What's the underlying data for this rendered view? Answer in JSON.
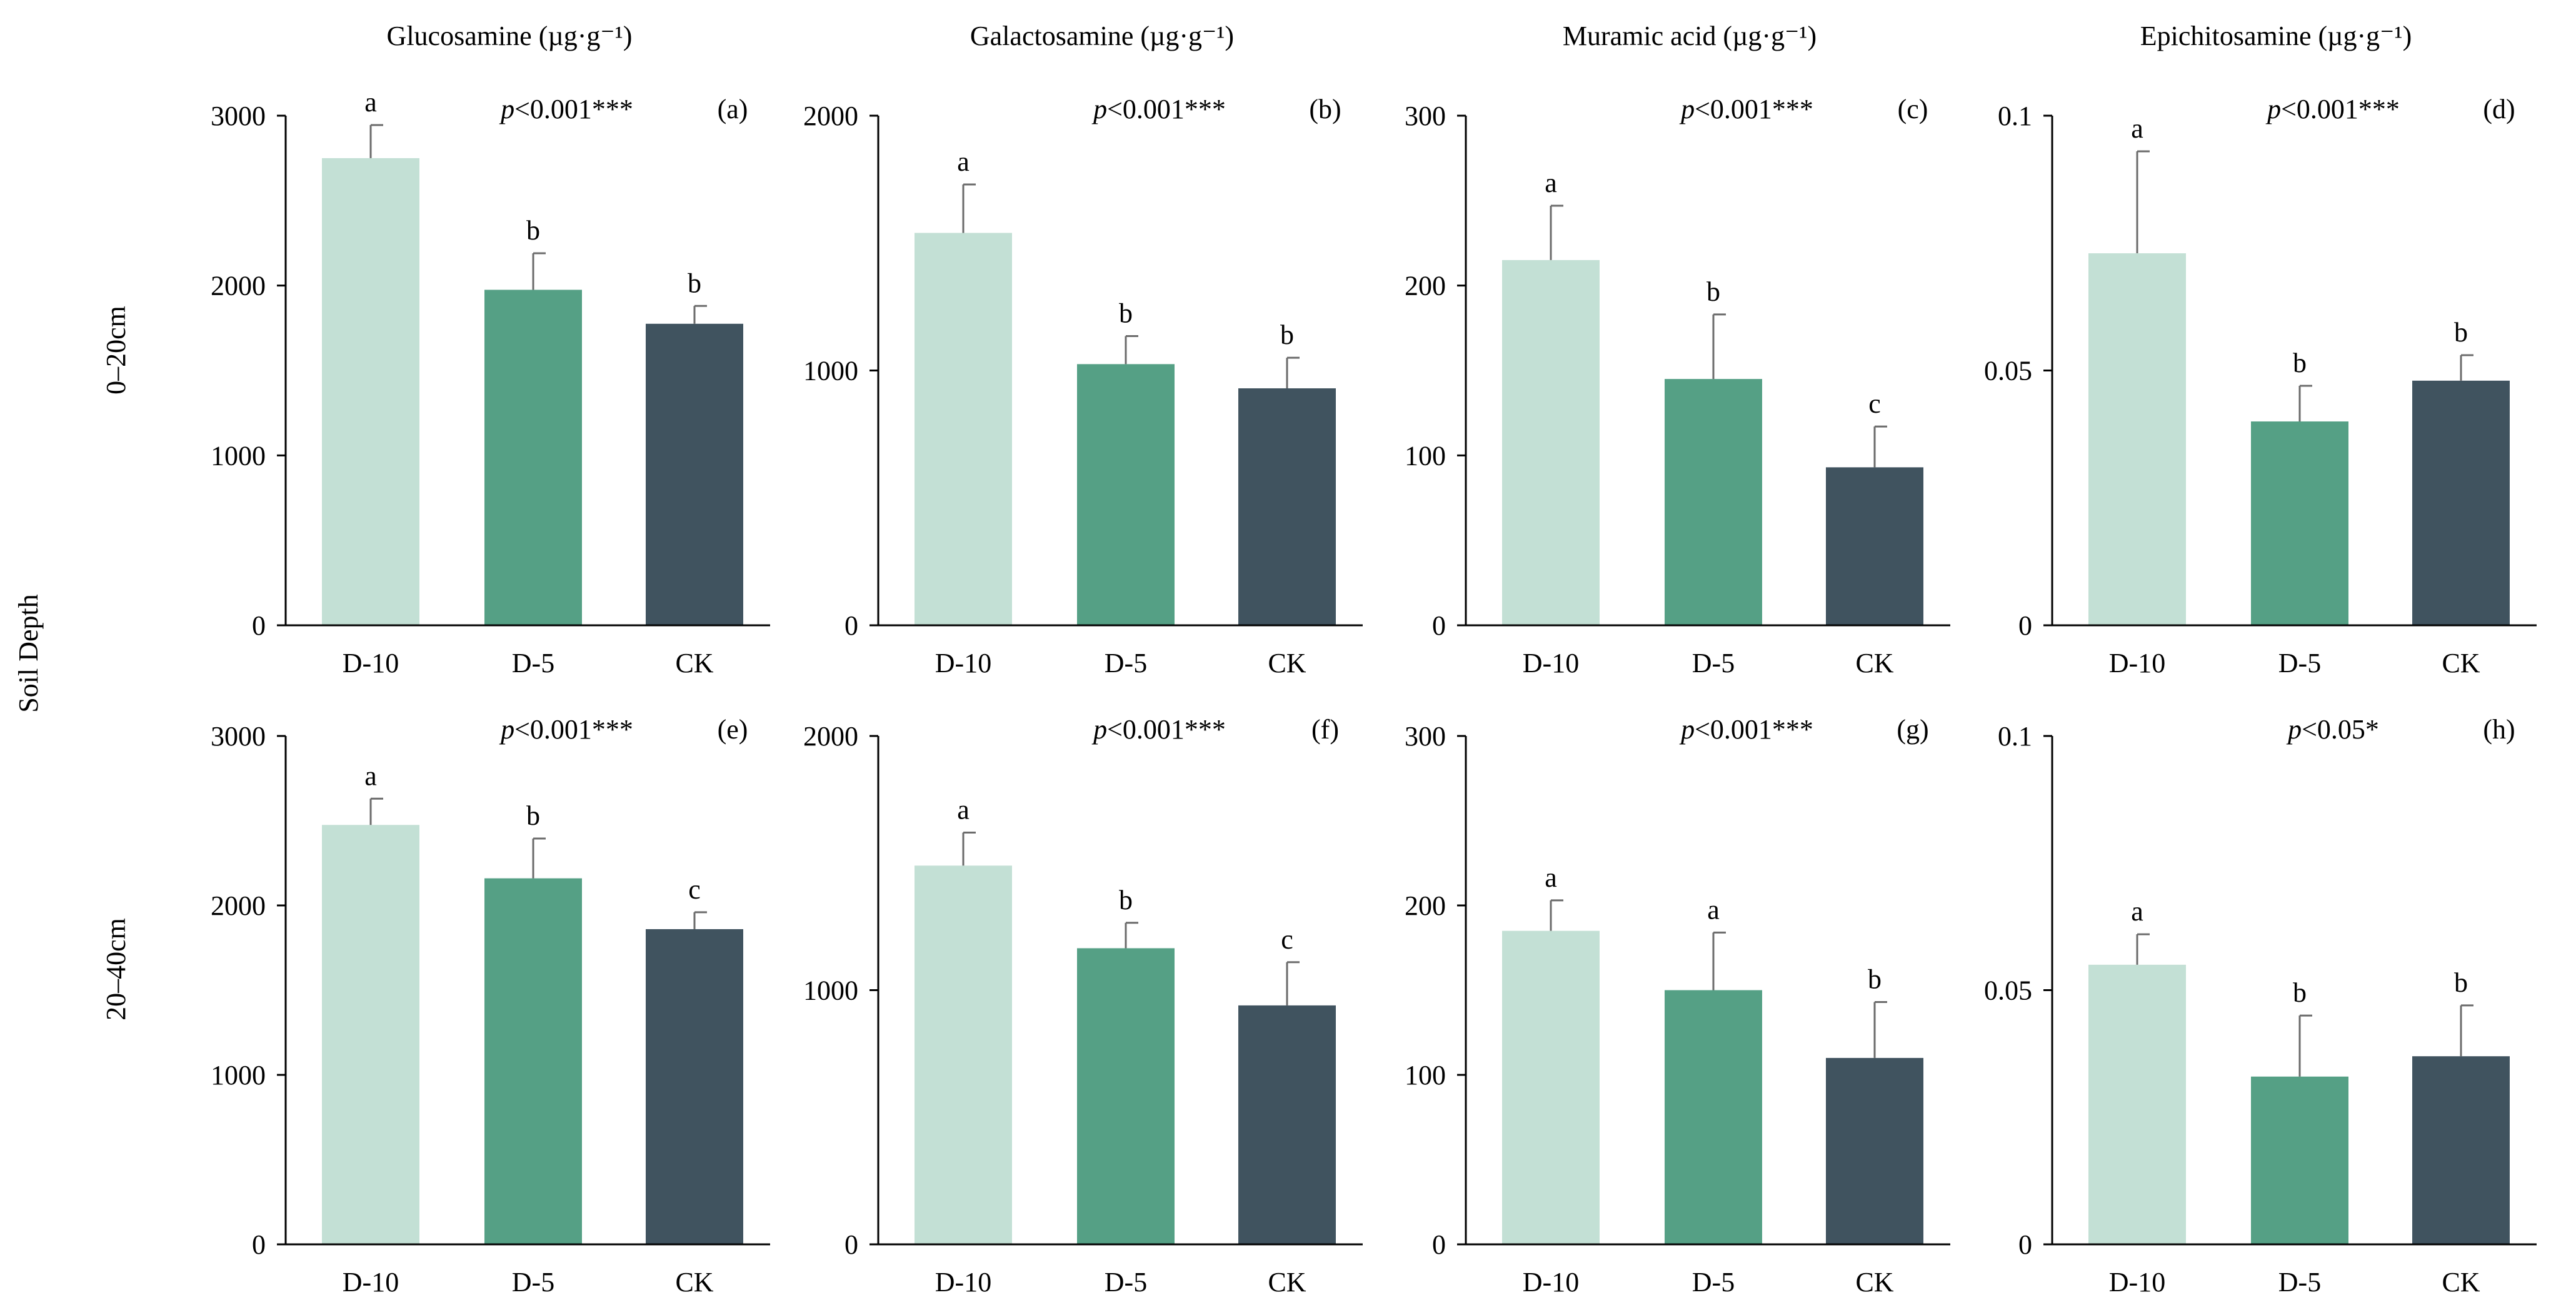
{
  "figure": {
    "row_axis_title": "Soil Depth",
    "row_labels": [
      "0–20cm",
      "20–40cm"
    ],
    "colors": {
      "D-10": "#c3e0d5",
      "D-5": "#55a085",
      "CK": "#40535f",
      "axis": "#000000",
      "error_bar": "#6b6b6b"
    }
  },
  "chart_data": [
    {
      "panel": "(a)",
      "type": "bar",
      "title": "Glucosamine (µg·g⁻¹)",
      "depth": "0–20cm",
      "categories": [
        "D-10",
        "D-5",
        "CK"
      ],
      "values": [
        2750,
        1975,
        1775
      ],
      "errors": [
        195,
        215,
        105
      ],
      "letters": [
        "a",
        "b",
        "b"
      ],
      "pvalue": {
        "italic": "p",
        "text": "<0.001***"
      },
      "ylim": [
        0,
        3000
      ],
      "yticks": [
        0,
        1000,
        2000,
        3000
      ],
      "ytick_labels": [
        "0",
        "1000",
        "2000",
        "3000"
      ]
    },
    {
      "panel": "(b)",
      "type": "bar",
      "title": "Galactosamine (µg·g⁻¹)",
      "depth": "0–20cm",
      "categories": [
        "D-10",
        "D-5",
        "CK"
      ],
      "values": [
        1540,
        1025,
        930
      ],
      "errors": [
        190,
        110,
        120
      ],
      "letters": [
        "a",
        "b",
        "b"
      ],
      "pvalue": {
        "italic": "p",
        "text": "<0.001***"
      },
      "ylim": [
        0,
        2000
      ],
      "yticks": [
        0,
        1000,
        2000
      ],
      "ytick_labels": [
        "0",
        "1000",
        "2000"
      ]
    },
    {
      "panel": "(c)",
      "type": "bar",
      "title": "Muramic acid (µg·g⁻¹)",
      "depth": "0–20cm",
      "categories": [
        "D-10",
        "D-5",
        "CK"
      ],
      "values": [
        215,
        145,
        93
      ],
      "errors": [
        32,
        38,
        24
      ],
      "letters": [
        "a",
        "b",
        "c"
      ],
      "pvalue": {
        "italic": "p",
        "text": "<0.001***"
      },
      "ylim": [
        0,
        300
      ],
      "yticks": [
        0,
        100,
        200,
        300
      ],
      "ytick_labels": [
        "0",
        "100",
        "200",
        "300"
      ]
    },
    {
      "panel": "(d)",
      "type": "bar",
      "title": "Epichitosamine (µg·g⁻¹)",
      "depth": "0–20cm",
      "categories": [
        "D-10",
        "D-5",
        "CK"
      ],
      "values": [
        0.073,
        0.04,
        0.048
      ],
      "errors": [
        0.02,
        0.007,
        0.005
      ],
      "letters": [
        "a",
        "b",
        "b"
      ],
      "pvalue": {
        "italic": "p",
        "text": "<0.001***"
      },
      "ylim": [
        0,
        0.1
      ],
      "yticks": [
        0,
        0.05,
        0.1
      ],
      "ytick_labels": [
        "0",
        "0.05",
        "0.1"
      ]
    },
    {
      "panel": "(e)",
      "type": "bar",
      "title": "",
      "depth": "20–40cm",
      "categories": [
        "D-10",
        "D-5",
        "CK"
      ],
      "values": [
        2475,
        2160,
        1860
      ],
      "errors": [
        155,
        235,
        100
      ],
      "letters": [
        "a",
        "b",
        "c"
      ],
      "pvalue": {
        "italic": "p",
        "text": "<0.001***"
      },
      "ylim": [
        0,
        3000
      ],
      "yticks": [
        0,
        1000,
        2000,
        3000
      ],
      "ytick_labels": [
        "0",
        "1000",
        "2000",
        "3000"
      ]
    },
    {
      "panel": "(f)",
      "type": "bar",
      "title": "",
      "depth": "20–40cm",
      "categories": [
        "D-10",
        "D-5",
        "CK"
      ],
      "values": [
        1490,
        1165,
        940
      ],
      "errors": [
        130,
        100,
        170
      ],
      "letters": [
        "a",
        "b",
        "c"
      ],
      "pvalue": {
        "italic": "p",
        "text": "<0.001***"
      },
      "ylim": [
        0,
        2000
      ],
      "yticks": [
        0,
        1000,
        2000
      ],
      "ytick_labels": [
        "0",
        "1000",
        "2000"
      ]
    },
    {
      "panel": "(g)",
      "type": "bar",
      "title": "",
      "depth": "20–40cm",
      "categories": [
        "D-10",
        "D-5",
        "CK"
      ],
      "values": [
        185,
        150,
        110
      ],
      "errors": [
        18,
        34,
        33
      ],
      "letters": [
        "a",
        "a",
        "b"
      ],
      "pvalue": {
        "italic": "p",
        "text": "<0.001***"
      },
      "ylim": [
        0,
        300
      ],
      "yticks": [
        0,
        100,
        200,
        300
      ],
      "ytick_labels": [
        "0",
        "100",
        "200",
        "300"
      ]
    },
    {
      "panel": "(h)",
      "type": "bar",
      "title": "",
      "depth": "20–40cm",
      "categories": [
        "D-10",
        "D-5",
        "CK"
      ],
      "values": [
        0.055,
        0.033,
        0.037
      ],
      "errors": [
        0.006,
        0.012,
        0.01
      ],
      "letters": [
        "a",
        "b",
        "b"
      ],
      "pvalue": {
        "italic": "p",
        "text": "<0.05*"
      },
      "ylim": [
        0,
        0.1
      ],
      "yticks": [
        0,
        0.05,
        0.1
      ],
      "ytick_labels": [
        "0",
        "0.05",
        "0.1"
      ]
    }
  ]
}
